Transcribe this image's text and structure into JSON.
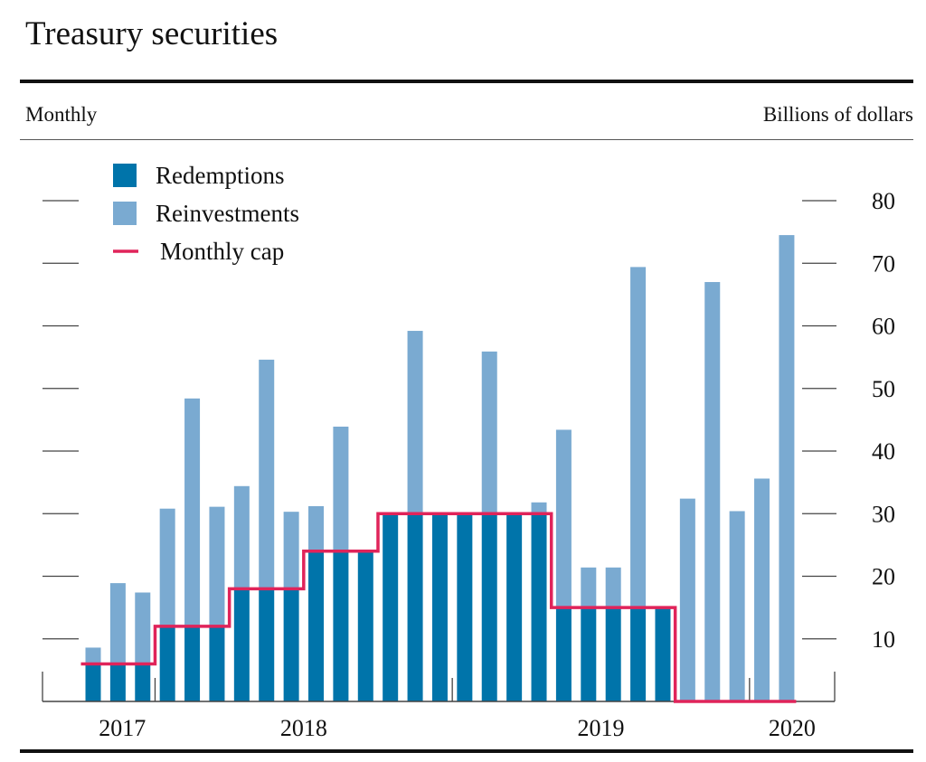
{
  "title": "Treasury securities",
  "left_note": "Monthly",
  "right_note": "Billions of dollars",
  "chart_data": {
    "type": "bar",
    "stacked": true,
    "categories": [
      "2017-10",
      "2017-11",
      "2017-12",
      "2018-01",
      "2018-02",
      "2018-03",
      "2018-04",
      "2018-05",
      "2018-06",
      "2018-07",
      "2018-08",
      "2018-09",
      "2018-10",
      "2018-11",
      "2018-12",
      "2019-01",
      "2019-02",
      "2019-03",
      "2019-04",
      "2019-05",
      "2019-06",
      "2019-07",
      "2019-08",
      "2019-09",
      "2019-10",
      "2019-11",
      "2019-12",
      "2020-01",
      "2020-02"
    ],
    "year_labels": [
      {
        "label": "2017",
        "months": 3
      },
      {
        "label": "2018",
        "months": 12
      },
      {
        "label": "2019",
        "months": 12
      },
      {
        "label": "2020",
        "months": 2
      }
    ],
    "series": [
      {
        "name": "Redemptions",
        "color": "#0074aa",
        "type": "bar",
        "values": [
          6,
          6,
          6,
          12,
          12,
          12,
          18,
          18,
          18,
          24,
          24,
          24,
          30,
          30,
          30,
          30,
          30,
          30,
          30,
          15,
          15,
          15,
          15,
          15,
          0,
          0,
          0,
          0,
          0
        ]
      },
      {
        "name": "Reinvestments",
        "color": "#7aaad1",
        "type": "bar",
        "values": [
          2.6,
          12.9,
          11.4,
          18.8,
          36.4,
          19.1,
          16.4,
          36.6,
          12.3,
          7.2,
          19.9,
          0,
          0,
          29.2,
          0,
          0,
          25.9,
          0,
          1.8,
          28.4,
          6.4,
          6.4,
          54.4,
          0,
          32.4,
          67.0,
          30.4,
          35.6,
          74.5
        ]
      },
      {
        "name": "Monthly cap",
        "color": "#e0245a",
        "type": "step",
        "values": [
          6,
          6,
          6,
          12,
          12,
          12,
          18,
          18,
          18,
          24,
          24,
          24,
          30,
          30,
          30,
          30,
          30,
          30,
          30,
          15,
          15,
          15,
          15,
          15,
          0,
          0,
          0,
          0,
          0
        ]
      }
    ],
    "ylim": [
      0,
      85
    ],
    "yticks": [
      10,
      20,
      30,
      40,
      50,
      60,
      70,
      80
    ],
    "ylabel": "Billions of dollars",
    "legend_position": "top-left",
    "grid": false
  }
}
